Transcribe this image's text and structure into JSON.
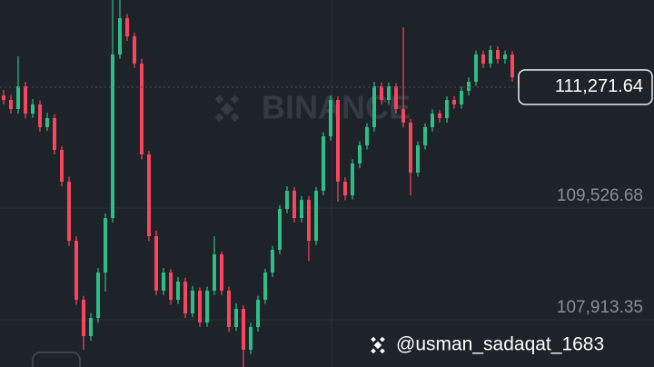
{
  "chart_data": {
    "type": "candlestick",
    "watermark": "BINANCE",
    "username": "@usman_sadaqat_1683",
    "up_color": "#2ebd85",
    "down_color": "#f6465d",
    "ylim": [
      107231,
      112530
    ],
    "yticks": [
      {
        "value": 109526.68,
        "label": "109,526.68"
      },
      {
        "value": 107913.35,
        "label": "107,913.35"
      }
    ],
    "grid": true,
    "price_label": {
      "value": 111271.64,
      "label": "111,271.64"
    },
    "open": [
      111150,
      111087,
      110956,
      111284,
      110890,
      111022,
      110694,
      110825,
      110366,
      109907,
      109054,
      108201,
      107677,
      107939,
      108595,
      109382,
      111743,
      112268,
      112005,
      111612,
      110300,
      109120,
      108333,
      108595,
      108201,
      108464,
      108005,
      108333,
      107873,
      108333,
      108857,
      108333,
      107808,
      108070,
      107480,
      107808,
      108201,
      108595,
      108923,
      109513,
      109775,
      109382,
      109644,
      109054,
      109775,
      110562,
      111087,
      109907,
      109710,
      110169,
      110431,
      110694,
      111284,
      111087,
      111284,
      110956,
      110759,
      110038,
      110431,
      110694,
      110890,
      110825,
      111087,
      111022,
      111218,
      111349,
      111743,
      111612,
      111809,
      111677,
      111743,
      111415
    ],
    "high": [
      111230,
      111160,
      111717,
      111350,
      111100,
      111080,
      110900,
      110880,
      110420,
      109980,
      109120,
      108260,
      108010,
      108660,
      109450,
      112530,
      112530,
      112330,
      112060,
      111680,
      110350,
      109200,
      108660,
      108640,
      108530,
      108520,
      108400,
      108380,
      108390,
      109120,
      108900,
      108390,
      108150,
      108120,
      107870,
      108260,
      108650,
      108980,
      109570,
      109840,
      109830,
      109700,
      109700,
      109830,
      110620,
      111150,
      111140,
      109970,
      110230,
      110490,
      110750,
      111350,
      111340,
      111340,
      111330,
      112136,
      110810,
      110490,
      110750,
      110950,
      110940,
      111140,
      111140,
      111280,
      111410,
      111800,
      111800,
      111870,
      111860,
      111800,
      111790,
      111460
    ],
    "low": [
      111020,
      110890,
      110890,
      110820,
      110830,
      110630,
      110640,
      110300,
      109840,
      108980,
      108130,
      107480,
      107610,
      107870,
      108320,
      109320,
      111680,
      111940,
      111550,
      110230,
      109050,
      108270,
      108270,
      108130,
      108140,
      107940,
      107950,
      107810,
      107810,
      108270,
      108270,
      107740,
      107750,
      107231,
      107420,
      107740,
      108140,
      108530,
      108860,
      109450,
      109320,
      109320,
      108760,
      108990,
      109710,
      110500,
      109620,
      109640,
      109650,
      110100,
      110370,
      110630,
      111020,
      111020,
      110890,
      110690,
      109710,
      109980,
      110370,
      110630,
      110760,
      110760,
      110960,
      110960,
      111150,
      111290,
      111550,
      111550,
      111610,
      111610,
      111350,
      111210
    ],
    "close": [
      111087,
      110956,
      111284,
      110890,
      111022,
      110694,
      110825,
      110366,
      109907,
      109054,
      108201,
      107677,
      107939,
      108595,
      109382,
      111743,
      112268,
      112005,
      111612,
      110300,
      109120,
      108333,
      108595,
      108201,
      108464,
      108005,
      108333,
      107873,
      108333,
      108857,
      108333,
      107808,
      108070,
      107480,
      107808,
      108201,
      108595,
      108923,
      109513,
      109775,
      109382,
      109644,
      109054,
      109775,
      110562,
      111087,
      109907,
      109710,
      110169,
      110431,
      110694,
      111284,
      111087,
      111284,
      110956,
      110759,
      110038,
      110431,
      110694,
      110890,
      110825,
      111087,
      111022,
      111218,
      111349,
      111743,
      111612,
      111809,
      111677,
      111743,
      111415,
      111271.64
    ]
  }
}
